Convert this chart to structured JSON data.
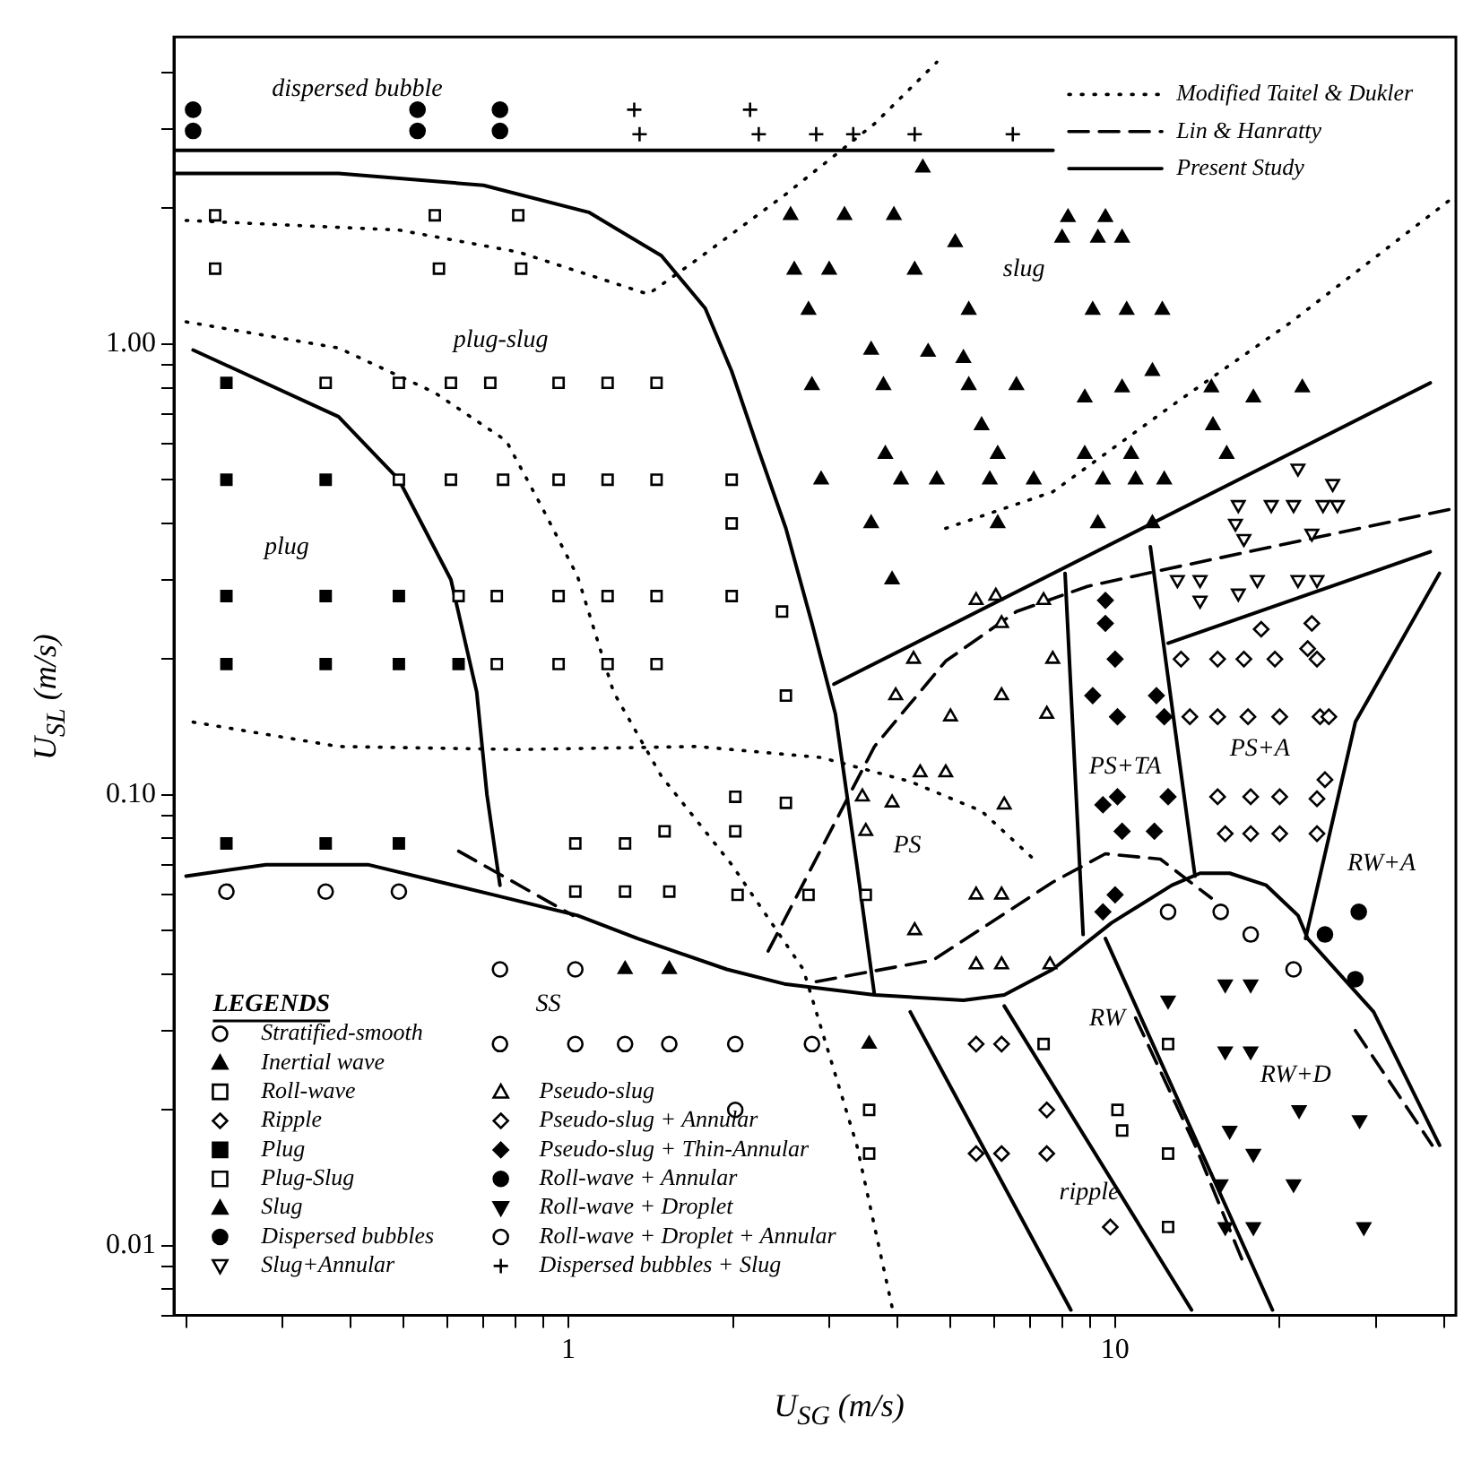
{
  "chart_data": {
    "type": "scatter",
    "xlabel": "U$_{SG}$ (m/s)",
    "ylabel": "U$_{SL}$ (m/s)",
    "legend_title": "LEGENDS",
    "legend": "bottom left",
    "log": "xy",
    "xlim": [
      0.19,
      42
    ],
    "ylim": [
      0.007,
      4.8
    ],
    "xticks": [
      {
        "value": 0.2,
        "label": null
      },
      {
        "value": 0.3,
        "label": null
      },
      {
        "value": 0.4,
        "label": null
      },
      {
        "value": 0.5,
        "label": null
      },
      {
        "value": 0.6,
        "label": null
      },
      {
        "value": 0.7,
        "label": null
      },
      {
        "value": 0.8,
        "label": null
      },
      {
        "value": 0.9,
        "label": null
      },
      1,
      {
        "value": 2,
        "label": null
      },
      {
        "value": 3,
        "label": null
      },
      {
        "value": 4,
        "label": null
      },
      {
        "value": 5,
        "label": null
      },
      {
        "value": 6,
        "label": null
      },
      {
        "value": 7,
        "label": null
      },
      {
        "value": 8,
        "label": null
      },
      {
        "value": 9,
        "label": null
      },
      10,
      {
        "value": 20,
        "label": null
      },
      {
        "value": 30,
        "label": null
      },
      {
        "value": 40,
        "label": null
      }
    ],
    "yticks": [
      {
        "value": 0.007,
        "label": null
      },
      {
        "value": 0.008,
        "label": null
      },
      {
        "value": 0.009,
        "label": null
      },
      {
        "value": 0.01,
        "label": "0.01"
      },
      {
        "value": 0.02,
        "label": null
      },
      {
        "value": 0.03,
        "label": null
      },
      {
        "value": 0.04,
        "label": null
      },
      {
        "value": 0.05,
        "label": null
      },
      {
        "value": 0.06,
        "label": null
      },
      {
        "value": 0.07,
        "label": null
      },
      {
        "value": 0.08,
        "label": null
      },
      {
        "value": 0.09,
        "label": null
      },
      {
        "value": 0.1,
        "label": "0.10"
      },
      {
        "value": 0.2,
        "label": null
      },
      {
        "value": 0.3,
        "label": null
      },
      {
        "value": 0.4,
        "label": null
      },
      {
        "value": 0.5,
        "label": null
      },
      {
        "value": 0.6,
        "label": null
      },
      {
        "value": 0.7,
        "label": null
      },
      {
        "value": 0.8,
        "label": null
      },
      {
        "value": 0.9,
        "label": null
      },
      {
        "value": 1,
        "label": "1.00"
      },
      {
        "value": 2,
        "label": null
      },
      {
        "value": 3,
        "label": null
      },
      {
        "value": 4,
        "label": null
      }
    ],
    "annotations": [
      "dispersed bubble",
      "plug-slug",
      "plug",
      "slug",
      "PS",
      "PS+TA",
      "PS+A",
      "RW+A",
      "SS",
      "RW",
      "RW+D",
      "ripple"
    ],
    "series": [
      {
        "name": "Stratified-smooth",
        "type": "scatter",
        "marker": "circle-open",
        "color": "#000000",
        "x": [
          0.237,
          0.36,
          0.49,
          0.75,
          0.75,
          1.03,
          1.27,
          1.53,
          2.02,
          2.79,
          2.02,
          1.03
        ],
        "values": [
          0.061,
          0.061,
          0.061,
          0.041,
          0.028,
          0.028,
          0.028,
          0.028,
          0.028,
          0.028,
          0.02,
          0.041
        ]
      },
      {
        "name": "Inertial wave",
        "type": "scatter",
        "marker": "triangle",
        "color": "#000000",
        "x": [
          1.27,
          1.53,
          3.55
        ],
        "values": [
          0.041,
          0.041,
          0.028
        ]
      },
      {
        "name": "Roll-wave",
        "type": "scatter",
        "marker": "square-open",
        "color": "#000000",
        "x": [
          7.4,
          10.1,
          10.3,
          12.5,
          12.5,
          12.5,
          3.55,
          3.55
        ],
        "values": [
          0.028,
          0.02,
          0.018,
          0.016,
          0.011,
          0.028,
          0.02,
          0.016
        ]
      },
      {
        "name": "Ripple",
        "type": "scatter",
        "marker": "diamond-open",
        "color": "#000000",
        "x": [
          5.57,
          6.2,
          7.5,
          5.57,
          6.2,
          7.5,
          9.8
        ],
        "values": [
          0.028,
          0.028,
          0.02,
          0.016,
          0.016,
          0.016,
          0.011
        ]
      },
      {
        "name": "Plug",
        "type": "scatter",
        "marker": "square",
        "color": "#000000",
        "x": [
          0.237,
          0.237,
          0.36,
          0.237,
          0.36,
          0.49,
          0.237,
          0.36,
          0.49,
          0.63,
          0.237,
          0.36,
          0.49
        ],
        "values": [
          0.82,
          0.5,
          0.5,
          0.276,
          0.276,
          0.276,
          0.195,
          0.195,
          0.195,
          0.195,
          0.078,
          0.078,
          0.078
        ]
      },
      {
        "name": "Plug-Slug",
        "type": "scatter",
        "marker": "square-open",
        "color": "#000000",
        "x": [
          0.226,
          0.57,
          0.81,
          0.226,
          0.58,
          0.82,
          0.36,
          0.49,
          0.61,
          0.72,
          0.96,
          1.18,
          1.45,
          0.49,
          0.61,
          0.76,
          0.96,
          1.18,
          1.45,
          1.99,
          0.63,
          0.74,
          0.96,
          1.18,
          1.45,
          1.99,
          0.74,
          0.96,
          1.18,
          1.45,
          1.99,
          2.46,
          2.5,
          1.03,
          1.27,
          1.5,
          1.03,
          1.27,
          1.53,
          2.02,
          2.5,
          2.02,
          2.04,
          2.75,
          3.5
        ],
        "values": [
          1.93,
          1.93,
          1.93,
          1.47,
          1.47,
          1.47,
          0.82,
          0.82,
          0.82,
          0.82,
          0.82,
          0.82,
          0.82,
          0.5,
          0.5,
          0.5,
          0.5,
          0.5,
          0.5,
          0.5,
          0.276,
          0.276,
          0.276,
          0.276,
          0.276,
          0.276,
          0.195,
          0.195,
          0.195,
          0.195,
          0.4,
          0.255,
          0.166,
          0.078,
          0.078,
          0.083,
          0.061,
          0.061,
          0.061,
          0.099,
          0.096,
          0.083,
          0.06,
          0.06,
          0.06
        ]
      },
      {
        "name": "Slug",
        "type": "scatter",
        "marker": "triangle",
        "color": "#000000",
        "x": [
          2.55,
          3.2,
          3.94,
          8.2,
          9.6,
          8.0,
          9.3,
          10.3,
          5.1,
          2.59,
          3.0,
          4.3,
          2.75,
          5.4,
          9.1,
          10.5,
          12.2,
          3.58,
          4.55,
          5.28,
          11.7,
          2.79,
          3.77,
          5.4,
          6.6,
          8.8,
          10.3,
          15,
          17.9,
          22,
          5.7,
          15.1,
          3.8,
          6.1,
          8.8,
          10.7,
          16,
          2.9,
          4.06,
          4.72,
          5.9,
          7.1,
          9.5,
          10.9,
          12.3,
          3.58,
          6.1,
          9.3,
          11.7,
          3.91,
          4.45
        ],
        "values": [
          1.93,
          1.93,
          1.93,
          1.91,
          1.91,
          1.72,
          1.72,
          1.72,
          1.68,
          1.46,
          1.46,
          1.46,
          1.19,
          1.19,
          1.19,
          1.19,
          1.19,
          0.97,
          0.96,
          0.93,
          0.87,
          0.81,
          0.81,
          0.81,
          0.81,
          0.76,
          0.8,
          0.8,
          0.76,
          0.8,
          0.66,
          0.66,
          0.57,
          0.57,
          0.57,
          0.57,
          0.57,
          0.5,
          0.5,
          0.5,
          0.5,
          0.5,
          0.5,
          0.5,
          0.5,
          0.4,
          0.4,
          0.4,
          0.4,
          0.3,
          2.46
        ]
      },
      {
        "name": "Dispersed bubbles",
        "type": "scatter",
        "marker": "circle",
        "color": "#000000",
        "x": [
          0.206,
          0.206,
          0.53,
          0.53,
          0.75,
          0.75
        ],
        "values": [
          3.31,
          2.97,
          3.31,
          2.97,
          3.31,
          2.97
        ]
      },
      {
        "name": "Slug+Annular",
        "type": "scatter",
        "marker": "triangle-down-open",
        "color": "#000000",
        "x": [
          21.6,
          25,
          16.8,
          19.3,
          21.2,
          24,
          25.5,
          16.6,
          17.2,
          22.9,
          13,
          14.3,
          18.2,
          21.6,
          23.4,
          14.3,
          16.8
        ],
        "values": [
          0.53,
          0.49,
          0.44,
          0.44,
          0.44,
          0.44,
          0.44,
          0.4,
          0.37,
          0.38,
          0.3,
          0.3,
          0.3,
          0.3,
          0.3,
          0.27,
          0.28
        ]
      },
      {
        "name": "Pseudo-slug",
        "type": "scatter",
        "marker": "triangle-open",
        "color": "#000000",
        "x": [
          5.57,
          6.05,
          7.4,
          6.2,
          4.28,
          7.69,
          3.97,
          6.2,
          5.0,
          7.5,
          3.45,
          3.91,
          3.5,
          4.4,
          4.9,
          6.27,
          5.57,
          6.2,
          4.3,
          5.57,
          6.2,
          7.6
        ],
        "values": [
          0.27,
          0.276,
          0.27,
          0.24,
          0.2,
          0.2,
          0.166,
          0.166,
          0.149,
          0.151,
          0.099,
          0.096,
          0.083,
          0.112,
          0.112,
          0.095,
          0.06,
          0.06,
          0.05,
          0.042,
          0.042,
          0.042
        ]
      },
      {
        "name": "Pseudo-slug + Annular",
        "type": "scatter",
        "marker": "diamond-open",
        "color": "#000000",
        "x": [
          18.5,
          22.9,
          22.5,
          13.2,
          15.4,
          17.2,
          19.6,
          23.4,
          13.7,
          15.4,
          17.5,
          20,
          23.7,
          24.6,
          15.4,
          17.7,
          20,
          23.4,
          24.2,
          15.9,
          17.7,
          20,
          23.4
        ],
        "values": [
          0.233,
          0.24,
          0.211,
          0.2,
          0.2,
          0.2,
          0.2,
          0.2,
          0.149,
          0.149,
          0.149,
          0.149,
          0.149,
          0.149,
          0.099,
          0.099,
          0.099,
          0.098,
          0.108,
          0.082,
          0.082,
          0.082,
          0.082
        ]
      },
      {
        "name": "Pseudo-slug + Thin-Annular",
        "type": "scatter",
        "marker": "diamond",
        "color": "#000000",
        "x": [
          9.6,
          9.6,
          10,
          9.1,
          10.1,
          11.9,
          12.3,
          9.5,
          10.1,
          12.5,
          10.3,
          11.8,
          10,
          9.5
        ],
        "values": [
          0.27,
          0.24,
          0.2,
          0.166,
          0.149,
          0.166,
          0.149,
          0.095,
          0.099,
          0.099,
          0.083,
          0.083,
          0.06,
          0.055
        ]
      },
      {
        "name": "Roll-wave + Annular",
        "type": "scatter",
        "marker": "circle",
        "color": "#000000",
        "x": [
          27.9,
          24.2,
          27.5
        ],
        "values": [
          0.055,
          0.049,
          0.039
        ]
      },
      {
        "name": "Roll-wave + Droplet",
        "type": "scatter",
        "marker": "triangle-down",
        "color": "#000000",
        "x": [
          12.5,
          15.9,
          17.7,
          15.9,
          17.7,
          21.7,
          28,
          16.2,
          17.9,
          21.2,
          15.6,
          15.9,
          17.9,
          28.5
        ],
        "values": [
          0.035,
          0.038,
          0.038,
          0.027,
          0.027,
          0.02,
          0.019,
          0.018,
          0.016,
          0.0137,
          0.0137,
          0.011,
          0.011,
          0.011
        ]
      },
      {
        "name": "Roll-wave + Droplet + Annular",
        "type": "scatter",
        "marker": "circle-open",
        "color": "#000000",
        "x": [
          12.5,
          15.6,
          17.7,
          21.2
        ],
        "values": [
          0.055,
          0.055,
          0.049,
          0.041
        ]
      },
      {
        "name": "Dispersed bubbles + Slug",
        "type": "scatter",
        "marker": "cross",
        "color": "#000000",
        "x": [
          1.32,
          1.35,
          2.15,
          2.23,
          2.84,
          3.32,
          4.3,
          6.5
        ],
        "values": [
          3.31,
          2.92,
          3.31,
          2.92,
          2.92,
          2.92,
          2.92,
          2.92
        ]
      },
      {
        "name": "Modified Taitel & Dukler",
        "type": "line",
        "line_style": "dotted",
        "color": "#000000",
        "x": [
          0.2,
          0.49,
          0.81,
          1.4,
          1.72,
          2.5,
          3.63,
          4.72,
          null,
          0.2,
          0.38,
          0.57,
          0.77,
          0.89,
          1.04,
          1.21,
          1.48,
          1.99,
          2.69,
          3.37,
          3.92,
          null,
          0.206,
          0.38,
          0.81,
          1.72,
          2.9,
          4.22,
          5.7,
          7.1,
          null,
          4.9,
          7.69,
          12.7,
          20.8,
          41
        ],
        "values": [
          1.88,
          1.79,
          1.6,
          1.29,
          1.54,
          2.15,
          3.08,
          4.22,
          null,
          1.12,
          0.98,
          0.78,
          0.61,
          0.44,
          0.305,
          0.169,
          0.11,
          0.07,
          0.041,
          0.0167,
          0.0072,
          null,
          0.145,
          0.128,
          0.126,
          0.128,
          0.121,
          0.107,
          0.092,
          0.072,
          null,
          0.39,
          0.47,
          0.73,
          1.11,
          2.09
        ]
      },
      {
        "name": "Lin & Hanratty",
        "type": "line",
        "line_style": "dashed",
        "color": "#000000",
        "x": [
          0.63,
          1.02,
          null,
          2.32,
          3.63,
          4.9,
          6.6,
          8.9,
          12.3,
          41,
          null,
          2.84,
          4.65,
          7.69,
          9.6,
          12.1,
          15,
          null,
          10.9,
          14,
          17.2,
          null,
          27.5,
          38
        ],
        "values": [
          0.075,
          0.054,
          null,
          0.045,
          0.128,
          0.198,
          0.255,
          0.29,
          0.316,
          0.43,
          null,
          0.0385,
          0.043,
          0.064,
          0.074,
          0.072,
          0.059,
          null,
          0.032,
          0.0167,
          0.0091,
          null,
          0.03,
          0.0167
        ]
      },
      {
        "name": "Present Study",
        "type": "line",
        "line_style": "solid",
        "color": "#000000",
        "x": [
          0.19,
          7.7,
          null,
          0.19,
          0.38,
          0.7,
          1.09,
          1.48,
          1.78,
          1.99,
          2.23,
          2.5,
          2.79,
          3.08,
          3.37,
          3.63,
          null,
          0.206,
          0.38,
          0.49,
          0.61,
          0.68,
          0.71,
          0.75,
          null,
          0.2,
          0.28,
          0.43,
          0.73,
          1.04,
          1.34,
          1.95,
          2.5,
          3.63,
          5.28,
          6.27,
          7.69,
          9.85,
          12.7,
          14.3,
          16.2,
          18.9,
          21.6,
          22.5,
          29.7,
          39.2,
          null,
          3.06,
          37.7,
          null,
          12.5,
          37.7,
          null,
          8.1,
          8.74,
          null,
          11.6,
          14,
          null,
          39.2,
          27.5,
          22.3,
          null,
          4.22,
          8.3,
          null,
          6.27,
          13.8,
          null,
          9.6,
          19.4
        ],
        "values": [
          2.69,
          2.69,
          null,
          2.39,
          2.39,
          2.25,
          1.96,
          1.57,
          1.2,
          0.87,
          0.58,
          0.39,
          0.24,
          0.151,
          0.07,
          0.036,
          null,
          0.97,
          0.69,
          0.5,
          0.3,
          0.169,
          0.1,
          0.063,
          null,
          0.066,
          0.07,
          0.07,
          0.06,
          0.054,
          0.048,
          0.041,
          0.038,
          0.036,
          0.035,
          0.036,
          0.041,
          0.052,
          0.063,
          0.067,
          0.067,
          0.063,
          0.054,
          0.048,
          0.033,
          0.0167,
          null,
          0.176,
          0.82,
          null,
          0.217,
          0.346,
          null,
          0.31,
          0.049,
          null,
          0.355,
          0.066,
          null,
          0.31,
          0.145,
          0.048,
          null,
          0.033,
          0.0072,
          null,
          0.034,
          0.0072,
          null,
          0.048,
          0.0072
        ]
      }
    ]
  }
}
